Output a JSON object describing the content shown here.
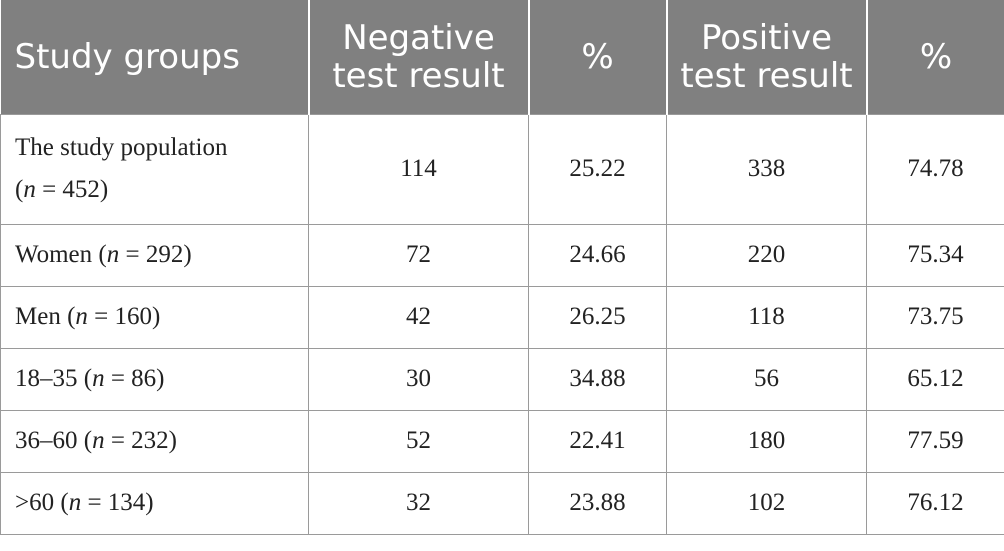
{
  "table": {
    "headers": [
      {
        "line1": "Study groups",
        "line2": ""
      },
      {
        "line1": "Negative",
        "line2": "test result"
      },
      {
        "line1": "%",
        "line2": ""
      },
      {
        "line1": "Positive",
        "line2": "test result"
      },
      {
        "line1": "%",
        "line2": ""
      }
    ],
    "rows": [
      {
        "label_main": "The study population",
        "label_open": "(",
        "n_symbol": "n",
        "n_text": " = 452)",
        "negative": "114",
        "neg_pct": "25.22",
        "positive": "338",
        "pos_pct": "74.78"
      },
      {
        "label_main": "Women",
        "label_open": " (",
        "n_symbol": "n",
        "n_text": " = 292)",
        "negative": "72",
        "neg_pct": "24.66",
        "positive": "220",
        "pos_pct": "75.34"
      },
      {
        "label_main": "Men",
        "label_open": " (",
        "n_symbol": "n",
        "n_text": " = 160)",
        "negative": "42",
        "neg_pct": "26.25",
        "positive": "118",
        "pos_pct": "73.75"
      },
      {
        "label_main": "18–35",
        "label_open": " (",
        "n_symbol": "n",
        "n_text": " = 86)",
        "negative": "30",
        "neg_pct": "34.88",
        "positive": "56",
        "pos_pct": "65.12"
      },
      {
        "label_main": "36–60",
        "label_open": " (",
        "n_symbol": "n",
        "n_text": " = 232)",
        "negative": "52",
        "neg_pct": "22.41",
        "positive": "180",
        "pos_pct": "77.59"
      },
      {
        "label_main": ">60",
        "label_open": " (",
        "n_symbol": "n",
        "n_text": " = 134)",
        "negative": "32",
        "neg_pct": "23.88",
        "positive": "102",
        "pos_pct": "76.12"
      }
    ]
  }
}
